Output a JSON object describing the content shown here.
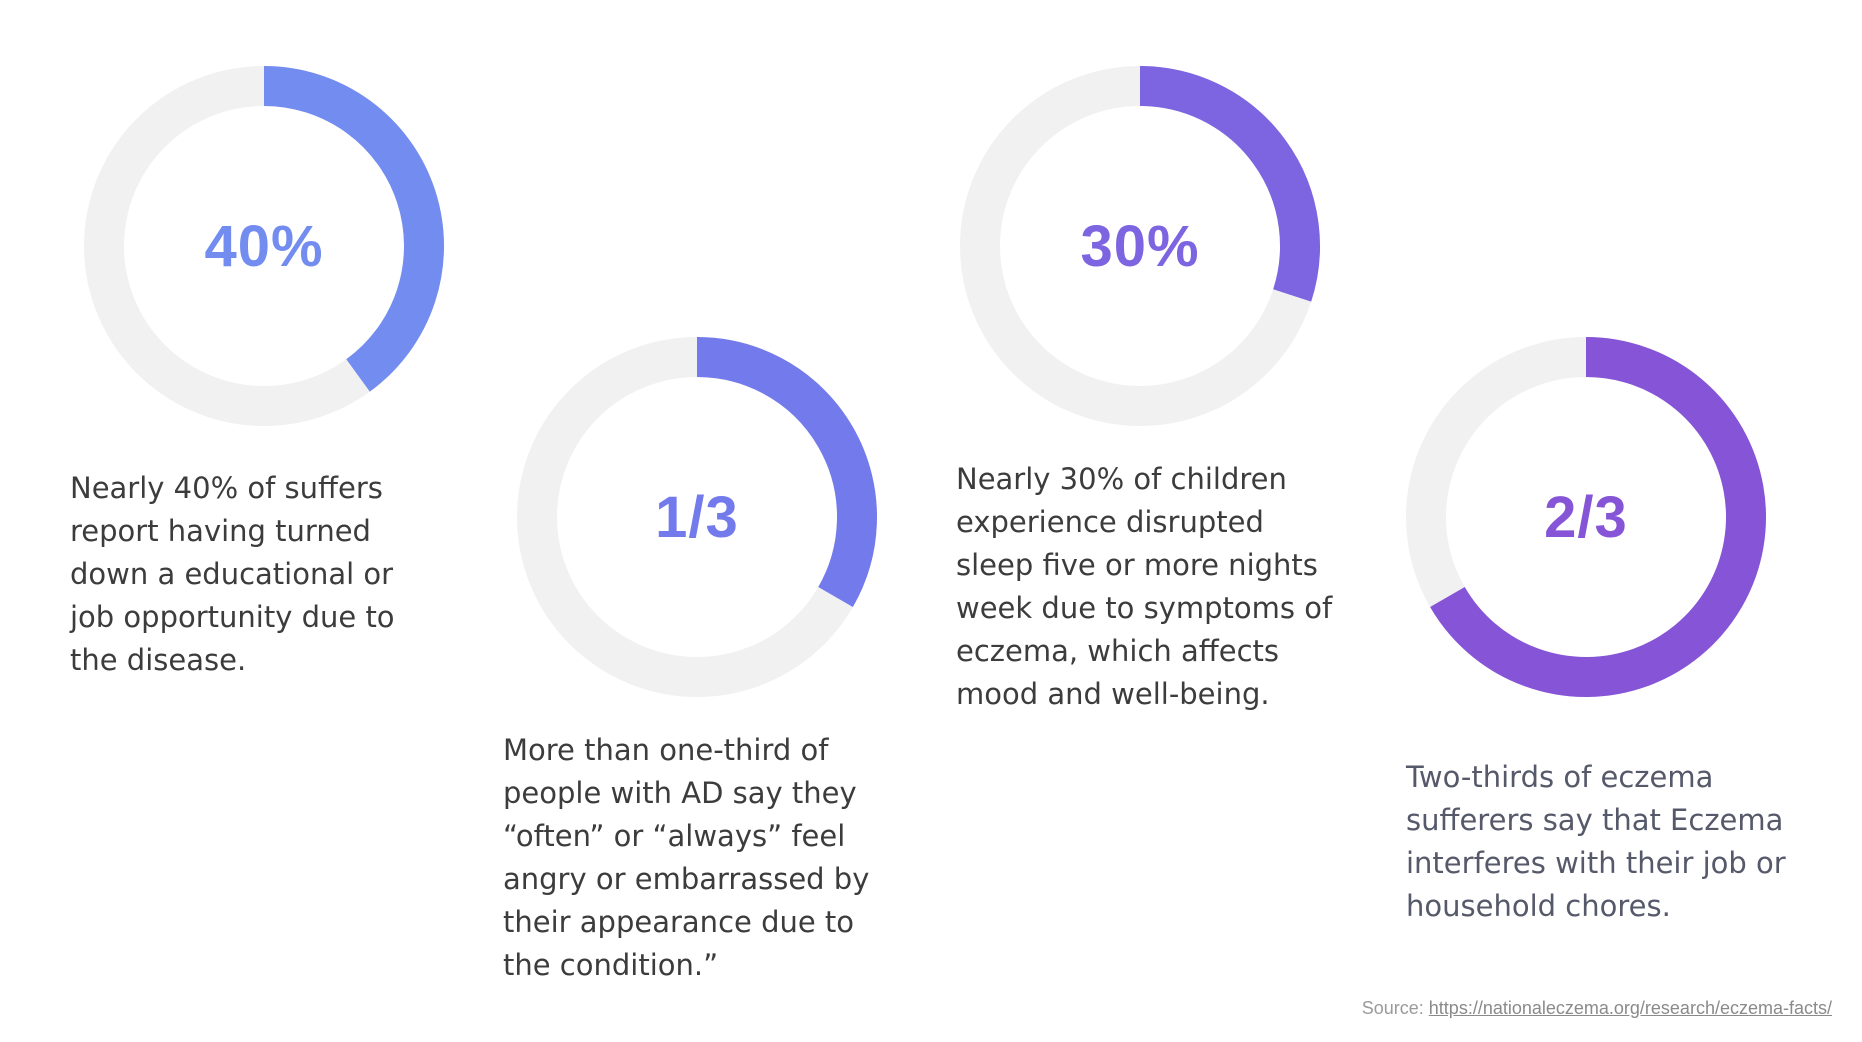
{
  "chart_data": [
    {
      "type": "pie",
      "variant": "donut",
      "label": "40%",
      "value": 0.4,
      "color": "#728cf0",
      "track_color": "#f1f1f1",
      "caption": "Nearly 40% of suffers\nreport having turned\ndown a educational or\njob opportunity due to\nthe disease."
    },
    {
      "type": "pie",
      "variant": "donut",
      "label": "1/3",
      "value": 0.3333,
      "color": "#737aec",
      "track_color": "#f1f1f1",
      "caption": "More than one-third of\npeople with AD say they\n“often” or “always” feel\nangry or embarrassed by\ntheir appearance due to\nthe condition.”"
    },
    {
      "type": "pie",
      "variant": "donut",
      "label": "30%",
      "value": 0.3,
      "color": "#7d64e0",
      "track_color": "#f1f1f1",
      "caption": "Nearly 30% of children\nexperience disrupted\nsleep five or more nights\nweek due to symptoms of\neczema, which affects\nmood and well-being."
    },
    {
      "type": "pie",
      "variant": "donut",
      "label": "2/3",
      "value": 0.6667,
      "color": "#8654d6",
      "track_color": "#f1f1f1",
      "caption": "Two-thirds of eczema\nsufferers say that Eczema\ninterferes with their job or\nhousehold chores."
    }
  ],
  "source": {
    "label": "Source: ",
    "url_text": "https://nationaleczema.org/research/eczema-facts/"
  }
}
